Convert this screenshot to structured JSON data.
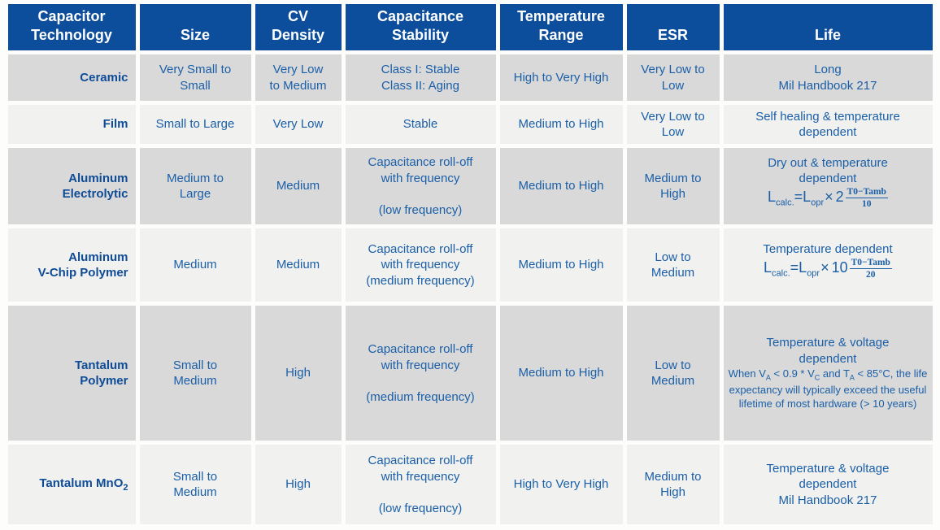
{
  "colors": {
    "header_bg": "#0d4e9c",
    "header_text": "#ffffff",
    "cell_text": "#1a5fa8",
    "technology_text": "#0f4c97",
    "row_dark": "#d9d9d9",
    "row_light": "#f1f1ef",
    "page_bg": "#fdfdfb"
  },
  "table": {
    "headers": [
      {
        "lines": [
          "Capacitor",
          "Technology"
        ]
      },
      {
        "lines": [
          "Size"
        ]
      },
      {
        "lines": [
          "CV",
          "Density"
        ]
      },
      {
        "lines": [
          "Capacitance",
          "Stability"
        ]
      },
      {
        "lines": [
          "Temperature",
          "Range"
        ]
      },
      {
        "lines": [
          "ESR"
        ]
      },
      {
        "lines": [
          "Life"
        ]
      }
    ],
    "rows": [
      {
        "technology": {
          "lines": [
            "Ceramic"
          ]
        },
        "size": {
          "lines": [
            "Very Small to",
            "Small"
          ]
        },
        "cv_density": {
          "lines": [
            "Very Low",
            "to Medium"
          ]
        },
        "stability": {
          "lines": [
            "Class I: Stable",
            "Class II: Aging"
          ]
        },
        "temperature_range": {
          "lines": [
            "High to Very High"
          ]
        },
        "esr": {
          "lines": [
            "Very Low to",
            "Low"
          ]
        },
        "life": {
          "lines": [
            "Long",
            "Mil Handbook 217"
          ]
        }
      },
      {
        "technology": {
          "lines": [
            "Film"
          ]
        },
        "size": {
          "lines": [
            "Small to Large"
          ]
        },
        "cv_density": {
          "lines": [
            "Very Low"
          ]
        },
        "stability": {
          "lines": [
            "Stable"
          ]
        },
        "temperature_range": {
          "lines": [
            "Medium to High"
          ]
        },
        "esr": {
          "lines": [
            "Very Low to",
            "Low"
          ]
        },
        "life": {
          "lines": [
            "Self healing & temperature",
            "dependent"
          ]
        }
      },
      {
        "technology": {
          "lines": [
            "Aluminum",
            "Electrolytic"
          ]
        },
        "size": {
          "lines": [
            "Medium to",
            "Large"
          ]
        },
        "cv_density": {
          "lines": [
            "Medium"
          ]
        },
        "stability": {
          "lines": [
            "Capacitance roll-off",
            "with frequency",
            "",
            "(low frequency)"
          ]
        },
        "temperature_range": {
          "lines": [
            "Medium to High"
          ]
        },
        "esr": {
          "lines": [
            "Medium to",
            "High"
          ]
        },
        "life": {
          "lines": [
            "Dry out & temperature",
            "dependent"
          ],
          "formula": {
            "lhs": "L",
            "lhs_sub": "calc.",
            "mid": "=L",
            "mid_sub": "opr",
            "op": "×",
            "base": "2",
            "frac_num": "T0−Tamb",
            "frac_den": "10"
          }
        }
      },
      {
        "technology": {
          "lines": [
            "Aluminum",
            "V-Chip Polymer"
          ]
        },
        "size": {
          "lines": [
            "Medium"
          ]
        },
        "cv_density": {
          "lines": [
            "Medium"
          ]
        },
        "stability": {
          "lines": [
            "Capacitance roll-off",
            "with frequency",
            "(medium frequency)"
          ]
        },
        "temperature_range": {
          "lines": [
            "Medium to High"
          ]
        },
        "esr": {
          "lines": [
            "Low to",
            "Medium"
          ]
        },
        "life": {
          "lines": [
            "Temperature dependent"
          ],
          "formula": {
            "lhs": "L",
            "lhs_sub": "calc.",
            "mid": "=L",
            "mid_sub": "opr",
            "op": "×",
            "base": "10",
            "frac_num": "T0−Tamb",
            "frac_den": "20"
          }
        }
      },
      {
        "technology": {
          "lines": [
            "Tantalum",
            "Polymer"
          ]
        },
        "size": {
          "lines": [
            "Small to",
            "Medium"
          ]
        },
        "cv_density": {
          "lines": [
            "High"
          ]
        },
        "stability": {
          "lines": [
            "Capacitance roll-off",
            "with frequency",
            "",
            "(medium frequency)"
          ]
        },
        "temperature_range": {
          "lines": [
            "Medium to High"
          ]
        },
        "esr": {
          "lines": [
            "Low to",
            "Medium"
          ]
        },
        "life": {
          "lines": [
            "Temperature & voltage",
            "dependent"
          ],
          "note": {
            "p1": "When V",
            "s1": "A",
            "p2": " < 0.9 * V",
            "s2": "C",
            "p3": " and T",
            "s3": "A",
            "p4": " < 85°C, the life expectancy will typically exceed the useful lifetime of most hardware (> 10 years)"
          }
        }
      },
      {
        "technology": {
          "text": "Tantalum MnO",
          "sub": "2"
        },
        "size": {
          "lines": [
            "Small to",
            "Medium"
          ]
        },
        "cv_density": {
          "lines": [
            "High"
          ]
        },
        "stability": {
          "lines": [
            "Capacitance roll-off",
            "with frequency",
            "",
            "(low frequency)"
          ]
        },
        "temperature_range": {
          "lines": [
            "High to Very High"
          ]
        },
        "esr": {
          "lines": [
            "Medium to",
            "High"
          ]
        },
        "life": {
          "lines": [
            "Temperature & voltage",
            "dependent",
            "Mil Handbook 217"
          ]
        }
      }
    ]
  }
}
